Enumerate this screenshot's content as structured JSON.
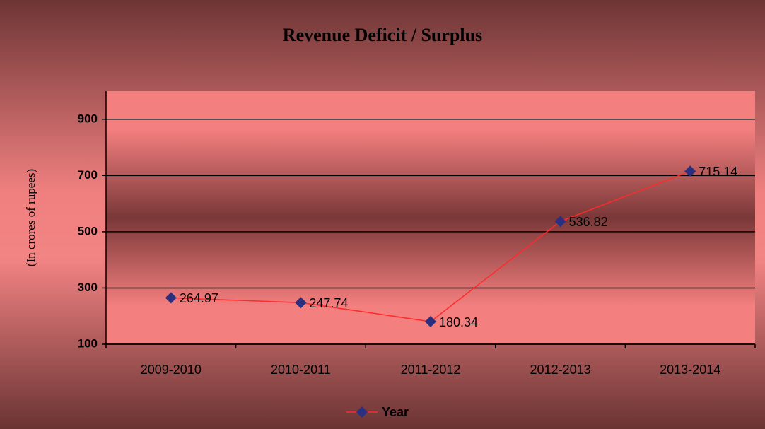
{
  "chart_data": {
    "type": "line",
    "title": "Revenue Deficit / Surplus",
    "y_label": "(In crores of rupees)",
    "categories": [
      "2009-2010",
      "2010-2011",
      "2011-2012",
      "2012-2013",
      "2013-2014"
    ],
    "series": [
      {
        "name": "Year",
        "color": "#ff2a2a",
        "marker_color": "#2b2f80",
        "values": [
          264.97,
          247.74,
          180.34,
          536.82,
          715.14
        ]
      }
    ],
    "ylim": [
      100,
      1000
    ],
    "yticks": [
      100,
      300,
      500,
      700,
      900
    ],
    "grid": true,
    "legend": "bottom"
  }
}
